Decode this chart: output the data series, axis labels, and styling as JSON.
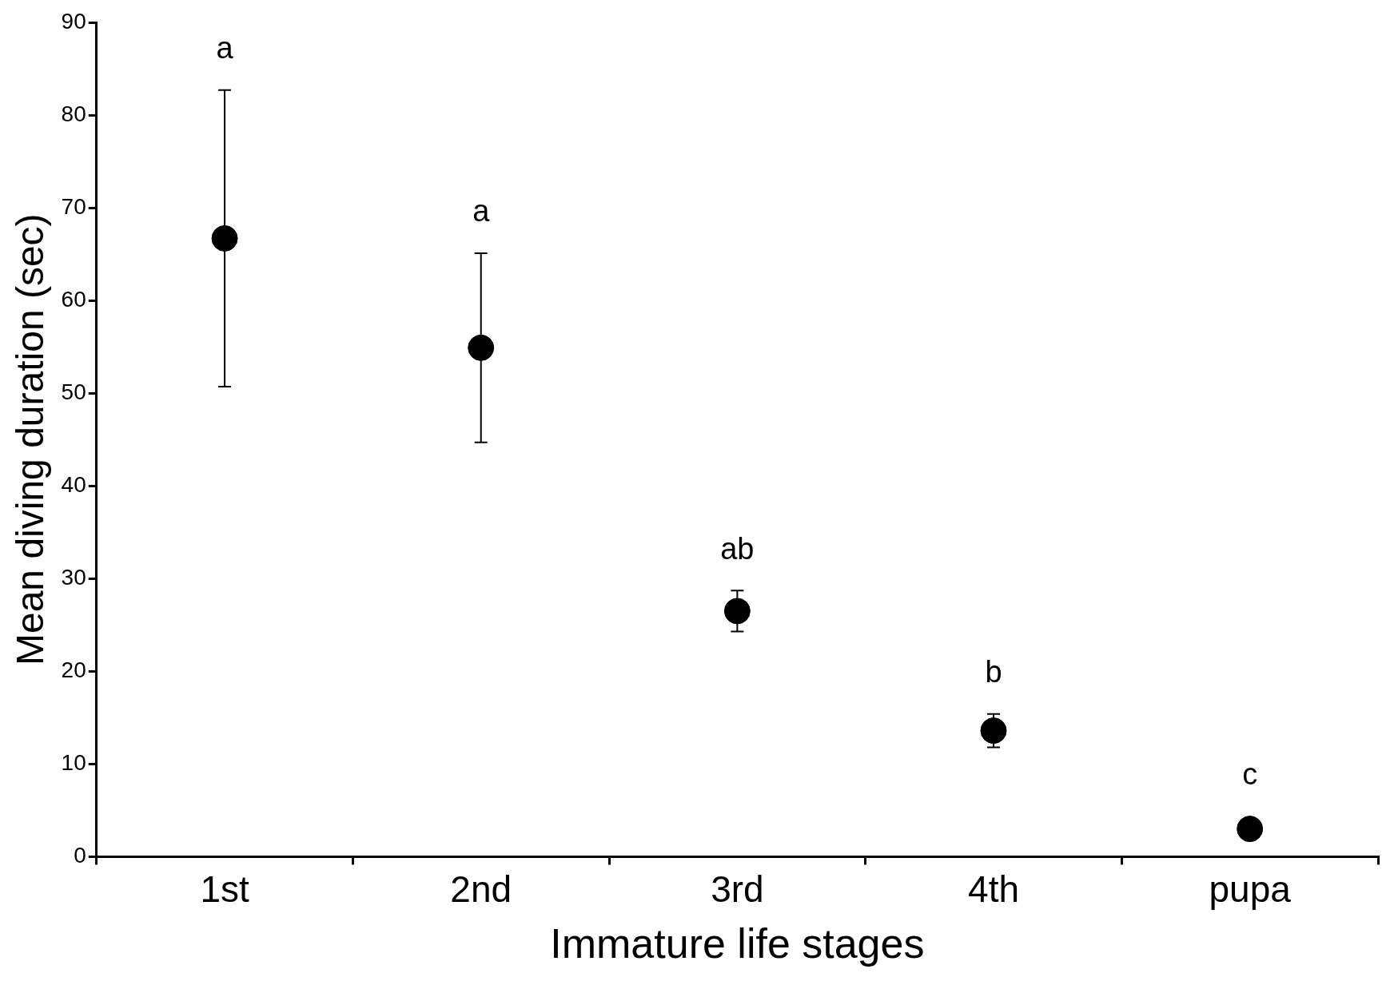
{
  "chart_data": {
    "type": "scatter",
    "xlabel": "Immature life stages",
    "ylabel": "Mean diving duration (sec)",
    "categories": [
      "1st",
      "2nd",
      "3rd",
      "4th",
      "pupa"
    ],
    "values": [
      66.7,
      54.9,
      26.5,
      13.6,
      3.0
    ],
    "errors": [
      16,
      10.2,
      2.2,
      1.8,
      null
    ],
    "color": "#000000",
    "marker": "circle",
    "ylim": [
      0,
      90
    ],
    "yticks": [
      0,
      10,
      20,
      30,
      40,
      50,
      60,
      70,
      80,
      90
    ],
    "grid": false,
    "legend": false,
    "annotations": [
      "a",
      "a",
      "ab",
      "b",
      "c"
    ]
  }
}
